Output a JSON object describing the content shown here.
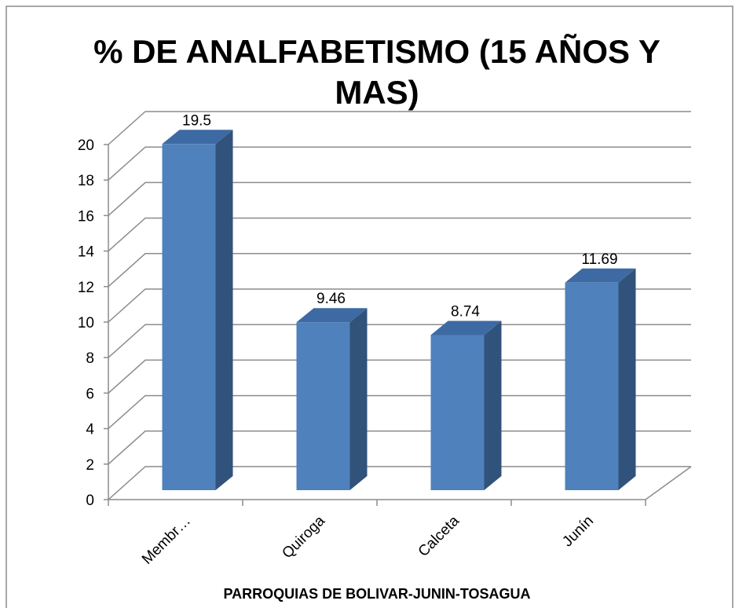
{
  "chart_data": {
    "type": "bar",
    "title": "% DE ANALFABETISMO (15 AÑOS Y MAS)",
    "x_label": "PARROQUIAS DE BOLIVAR-JUNIN-TOSAGUA",
    "categories": [
      "Membr…",
      "Quiroga",
      "Calceta",
      "Junín"
    ],
    "values": [
      19.5,
      9.46,
      8.74,
      11.69
    ],
    "color": "#4f81bd",
    "ylim": [
      0,
      20
    ],
    "yticks": [
      0,
      2,
      4,
      6,
      8,
      10,
      12,
      14,
      16,
      18,
      20
    ],
    "grid": true
  }
}
